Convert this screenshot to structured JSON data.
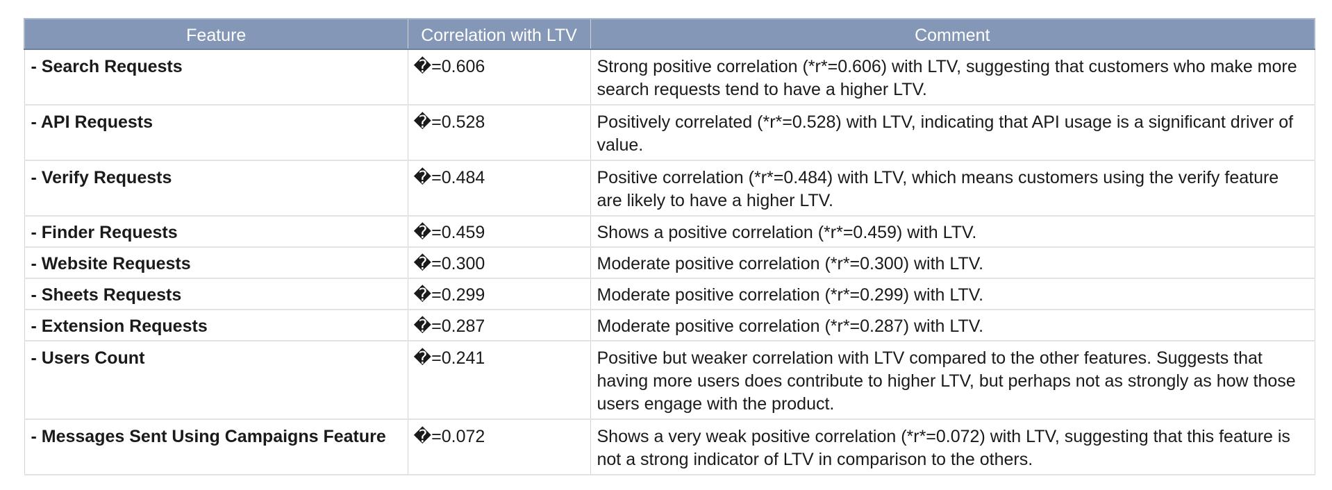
{
  "table": {
    "headers": {
      "feature": "Feature",
      "correlation": "Correlation with LTV",
      "comment": "Comment"
    },
    "rows": [
      {
        "feature": "- Search Requests",
        "correlation": "�=0.606",
        "comment": "Strong positive correlation (*r*=0.606) with LTV, suggesting that customers who make more search requests tend to have a higher LTV."
      },
      {
        "feature": "- API Requests",
        "correlation": "�=0.528",
        "comment": "Positively correlated (*r*=0.528) with LTV, indicating that API usage is a significant driver of value."
      },
      {
        "feature": "- Verify Requests",
        "correlation": "�=0.484",
        "comment": "Positive correlation (*r*=0.484) with LTV, which means customers using the verify feature are likely to have a higher LTV."
      },
      {
        "feature": "- Finder Requests",
        "correlation": "�=0.459",
        "comment": "Shows a positive correlation (*r*=0.459) with LTV."
      },
      {
        "feature": "- Website Requests",
        "correlation": "�=0.300",
        "comment": "Moderate positive correlation (*r*=0.300) with LTV."
      },
      {
        "feature": "- Sheets Requests",
        "correlation": "�=0.299",
        "comment": "Moderate positive correlation (*r*=0.299) with LTV."
      },
      {
        "feature": "- Extension Requests",
        "correlation": "�=0.287",
        "comment": "Moderate positive correlation (*r*=0.287) with LTV."
      },
      {
        "feature": "- Users Count",
        "correlation": "�=0.241",
        "comment": "Positive but weaker correlation with LTV compared to the other features. Suggests that having more users does contribute to higher LTV, but perhaps not as strongly as how those users engage with the product."
      },
      {
        "feature": "- Messages Sent Using Campaigns Feature",
        "correlation": "�=0.072",
        "comment": "Shows a very weak positive correlation (*r*=0.072) with LTV, suggesting that this feature is not a strong indicator of LTV in comparison to the others."
      }
    ]
  }
}
